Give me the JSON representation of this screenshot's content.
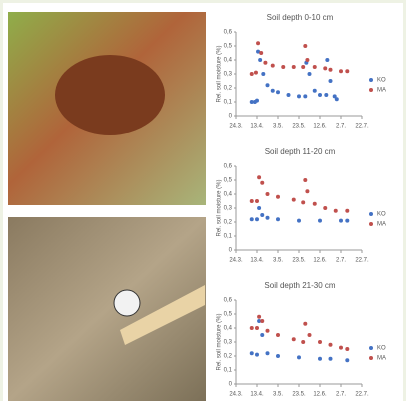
{
  "chart_data": [
    {
      "type": "scatter",
      "title": "Soil depth 0-10 cm",
      "y_label": "Rel. soil moisture (%)",
      "xlim": [
        0,
        120
      ],
      "xticks": [
        {
          "value": 0,
          "label": "24.3."
        },
        {
          "value": 20,
          "label": "13.4."
        },
        {
          "value": 40,
          "label": "3.5."
        },
        {
          "value": 60,
          "label": "23.5."
        },
        {
          "value": 80,
          "label": "12.6."
        },
        {
          "value": 100,
          "label": "2.7."
        },
        {
          "value": 120,
          "label": "22.7."
        }
      ],
      "ylim": [
        0,
        0.6
      ],
      "yticks": [
        0,
        {
          "value": 0.1,
          "label": "0,1"
        },
        {
          "value": 0.2,
          "label": "0,2"
        },
        {
          "value": 0.3,
          "label": "0,3"
        },
        {
          "value": 0.4,
          "label": "0,4"
        },
        {
          "value": 0.5,
          "label": "0,5"
        },
        {
          "value": 0.6,
          "label": "0,6"
        }
      ],
      "series": [
        {
          "name": "KO",
          "color": "#4472c4",
          "x": [
            15,
            18,
            20,
            21,
            23,
            26,
            30,
            35,
            40,
            50,
            60,
            66,
            67,
            70,
            75,
            80,
            86,
            87,
            90,
            94,
            96
          ],
          "values": [
            0.1,
            0.1,
            0.11,
            0.46,
            0.4,
            0.3,
            0.22,
            0.18,
            0.17,
            0.15,
            0.14,
            0.14,
            0.38,
            0.3,
            0.18,
            0.15,
            0.15,
            0.4,
            0.25,
            0.14,
            0.12
          ]
        },
        {
          "name": "MA",
          "color": "#c0504d",
          "x": [
            15,
            19,
            21,
            24,
            28,
            35,
            45,
            55,
            64,
            66,
            68,
            75,
            85,
            90,
            100,
            106
          ],
          "values": [
            0.3,
            0.31,
            0.52,
            0.45,
            0.38,
            0.36,
            0.35,
            0.35,
            0.35,
            0.5,
            0.4,
            0.35,
            0.34,
            0.33,
            0.32,
            0.32
          ]
        }
      ]
    },
    {
      "type": "scatter",
      "title": "Soil depth 11-20 cm",
      "y_label": "Rel. soil moisture (%)",
      "xlim": [
        0,
        120
      ],
      "xticks": [
        {
          "value": 0,
          "label": "24.3."
        },
        {
          "value": 20,
          "label": "13.4."
        },
        {
          "value": 40,
          "label": "3.5."
        },
        {
          "value": 60,
          "label": "23.5."
        },
        {
          "value": 80,
          "label": "12.6."
        },
        {
          "value": 100,
          "label": "2.7."
        },
        {
          "value": 120,
          "label": "22.7."
        }
      ],
      "ylim": [
        0,
        0.6
      ],
      "yticks": [
        0,
        {
          "value": 0.1,
          "label": "0,1"
        },
        {
          "value": 0.2,
          "label": "0,2"
        },
        {
          "value": 0.3,
          "label": "0,3"
        },
        {
          "value": 0.4,
          "label": "0,4"
        },
        {
          "value": 0.5,
          "label": "0,5"
        },
        {
          "value": 0.6,
          "label": "0,6"
        }
      ],
      "series": [
        {
          "name": "KO",
          "color": "#4472c4",
          "x": [
            15,
            20,
            22,
            25,
            30,
            40,
            60,
            80,
            100,
            106
          ],
          "values": [
            0.22,
            0.22,
            0.3,
            0.25,
            0.23,
            0.22,
            0.21,
            0.21,
            0.21,
            0.21
          ]
        },
        {
          "name": "MA",
          "color": "#c0504d",
          "x": [
            15,
            20,
            22,
            25,
            30,
            40,
            55,
            64,
            66,
            68,
            75,
            85,
            95,
            106
          ],
          "values": [
            0.35,
            0.35,
            0.52,
            0.48,
            0.4,
            0.38,
            0.36,
            0.34,
            0.5,
            0.42,
            0.33,
            0.3,
            0.28,
            0.28
          ]
        }
      ]
    },
    {
      "type": "scatter",
      "title": "Soil depth 21-30 cm",
      "y_label": "Rel. soil moisture (%)",
      "xlim": [
        0,
        120
      ],
      "xticks": [
        {
          "value": 0,
          "label": "24.3."
        },
        {
          "value": 20,
          "label": "13.4."
        },
        {
          "value": 40,
          "label": "3.5."
        },
        {
          "value": 60,
          "label": "23.5."
        },
        {
          "value": 80,
          "label": "12.6."
        },
        {
          "value": 100,
          "label": "2.7."
        },
        {
          "value": 120,
          "label": "22.7."
        }
      ],
      "ylim": [
        0,
        0.6
      ],
      "yticks": [
        0,
        {
          "value": 0.1,
          "label": "0,1"
        },
        {
          "value": 0.2,
          "label": "0,2"
        },
        {
          "value": 0.3,
          "label": "0,3"
        },
        {
          "value": 0.4,
          "label": "0,4"
        },
        {
          "value": 0.5,
          "label": "0,5"
        },
        {
          "value": 0.6,
          "label": "0,6"
        }
      ],
      "series": [
        {
          "name": "KO",
          "color": "#4472c4",
          "x": [
            15,
            20,
            22,
            25,
            30,
            40,
            60,
            80,
            90,
            106
          ],
          "values": [
            0.22,
            0.21,
            0.45,
            0.35,
            0.22,
            0.2,
            0.19,
            0.18,
            0.18,
            0.17
          ]
        },
        {
          "name": "MA",
          "color": "#c0504d",
          "x": [
            15,
            20,
            22,
            25,
            30,
            40,
            55,
            64,
            66,
            70,
            80,
            90,
            100,
            106
          ],
          "values": [
            0.4,
            0.4,
            0.48,
            0.45,
            0.38,
            0.35,
            0.32,
            0.3,
            0.43,
            0.35,
            0.3,
            0.28,
            0.26,
            0.25
          ]
        }
      ]
    }
  ]
}
